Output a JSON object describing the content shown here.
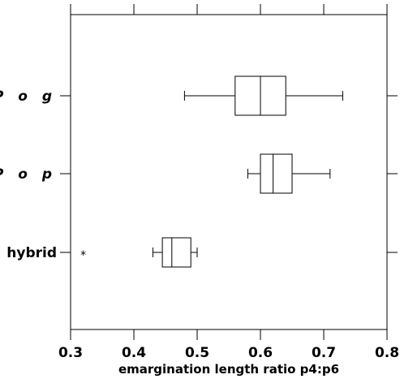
{
  "chart_data": {
    "type": "boxplot",
    "orientation": "horizontal",
    "xlabel": "emargination length ratio p4:p6",
    "xlim": [
      0.3,
      0.8
    ],
    "x_ticks": [
      "0.3",
      "0.4",
      "0.5",
      "0.6",
      "0.7",
      "0.8"
    ],
    "categories": [
      {
        "label": "P o g",
        "italic": true,
        "whisker_low": 0.48,
        "q1": 0.56,
        "median": 0.6,
        "q3": 0.64,
        "whisker_high": 0.73,
        "outliers": []
      },
      {
        "label": "P o p",
        "italic": true,
        "whisker_low": 0.58,
        "q1": 0.6,
        "median": 0.62,
        "q3": 0.65,
        "whisker_high": 0.71,
        "outliers": []
      },
      {
        "label": "hybrid",
        "italic": false,
        "whisker_low": 0.43,
        "q1": 0.445,
        "median": 0.46,
        "q3": 0.49,
        "whisker_high": 0.5,
        "outliers": [
          0.32
        ]
      }
    ],
    "outlier_symbol": "*",
    "grid": false
  }
}
